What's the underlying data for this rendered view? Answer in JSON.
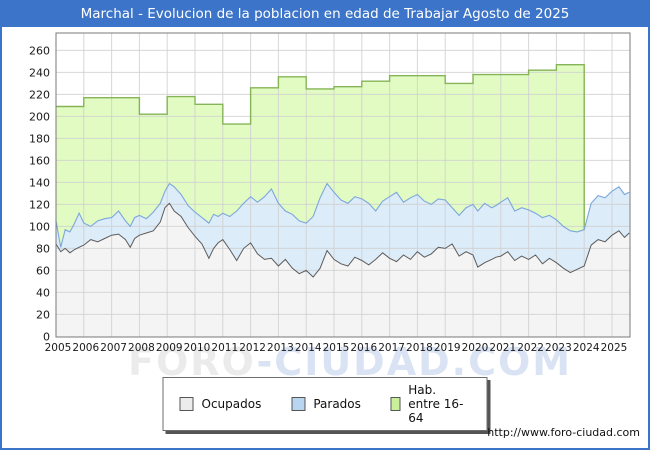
{
  "window": {
    "title": "Marchal - Evolucion de la poblacion en edad de Trabajar Agosto de 2025",
    "footer_url": "http://www.foro-ciudad.com",
    "watermark_part1": "FORO",
    "watermark_part2": "-CIUDAD.COM"
  },
  "colors": {
    "accent": "#3b74c8",
    "plot_border": "#7a7a7a",
    "grid": "#d0d0d0",
    "ocupados_line": "#5c5c5c",
    "ocupados_fill": "#f4f4f4",
    "parados_line": "#7ba7db",
    "parados_fill": "#dcecf9",
    "hab_line": "#85b457",
    "hab_fill": "#e2fbc3",
    "tick_text": "#1a1a1a"
  },
  "legend": {
    "items": [
      {
        "label": "Ocupados",
        "swatch_color": "#ececec"
      },
      {
        "label": "Parados",
        "swatch_color": "#b9d5ef"
      },
      {
        "label": "Hab. entre 16-64",
        "swatch_color": "#c9ef9a"
      }
    ]
  },
  "chart_data": {
    "type": "area",
    "title": "Marchal - Evolucion de la poblacion en edad de Trabajar Agosto de 2025",
    "xlabel": "",
    "ylabel": "",
    "xlim": [
      2005,
      2025.67
    ],
    "ylim": [
      0,
      276
    ],
    "y_ticks": [
      0,
      20,
      40,
      60,
      80,
      100,
      120,
      140,
      160,
      180,
      200,
      220,
      240,
      260
    ],
    "x_ticks": [
      2005,
      2006,
      2007,
      2008,
      2009,
      2010,
      2011,
      2012,
      2013,
      2014,
      2015,
      2016,
      2017,
      2018,
      2019,
      2020,
      2021,
      2022,
      2023,
      2024,
      2025
    ],
    "grid": true,
    "legend_position": "bottom",
    "series": [
      {
        "name": "Ocupados",
        "note": "monthly line, values estimated quarterly",
        "points": [
          [
            2005.0,
            84
          ],
          [
            2005.17,
            77
          ],
          [
            2005.33,
            80
          ],
          [
            2005.5,
            76
          ],
          [
            2005.67,
            79
          ],
          [
            2005.83,
            81
          ],
          [
            2006.0,
            83
          ],
          [
            2006.25,
            88
          ],
          [
            2006.5,
            86
          ],
          [
            2006.75,
            89
          ],
          [
            2007.0,
            92
          ],
          [
            2007.25,
            93
          ],
          [
            2007.5,
            88
          ],
          [
            2007.67,
            81
          ],
          [
            2007.83,
            89
          ],
          [
            2008.0,
            92
          ],
          [
            2008.25,
            94
          ],
          [
            2008.5,
            96
          ],
          [
            2008.75,
            104
          ],
          [
            2008.92,
            117
          ],
          [
            2009.08,
            121
          ],
          [
            2009.25,
            114
          ],
          [
            2009.5,
            109
          ],
          [
            2009.75,
            99
          ],
          [
            2010.0,
            91
          ],
          [
            2010.25,
            84
          ],
          [
            2010.5,
            71
          ],
          [
            2010.67,
            80
          ],
          [
            2010.83,
            85
          ],
          [
            2011.0,
            88
          ],
          [
            2011.25,
            79
          ],
          [
            2011.5,
            69
          ],
          [
            2011.75,
            80
          ],
          [
            2012.0,
            85
          ],
          [
            2012.25,
            75
          ],
          [
            2012.5,
            70
          ],
          [
            2012.75,
            71
          ],
          [
            2013.0,
            64
          ],
          [
            2013.25,
            70
          ],
          [
            2013.5,
            62
          ],
          [
            2013.75,
            57
          ],
          [
            2014.0,
            60
          ],
          [
            2014.25,
            54
          ],
          [
            2014.5,
            62
          ],
          [
            2014.75,
            78
          ],
          [
            2015.0,
            70
          ],
          [
            2015.25,
            66
          ],
          [
            2015.5,
            64
          ],
          [
            2015.75,
            72
          ],
          [
            2016.0,
            69
          ],
          [
            2016.25,
            65
          ],
          [
            2016.5,
            70
          ],
          [
            2016.75,
            76
          ],
          [
            2017.0,
            71
          ],
          [
            2017.25,
            68
          ],
          [
            2017.5,
            74
          ],
          [
            2017.75,
            70
          ],
          [
            2018.0,
            77
          ],
          [
            2018.25,
            72
          ],
          [
            2018.5,
            75
          ],
          [
            2018.75,
            81
          ],
          [
            2019.0,
            80
          ],
          [
            2019.25,
            84
          ],
          [
            2019.5,
            73
          ],
          [
            2019.75,
            77
          ],
          [
            2020.0,
            74
          ],
          [
            2020.17,
            63
          ],
          [
            2020.42,
            67
          ],
          [
            2020.67,
            70
          ],
          [
            2020.83,
            72
          ],
          [
            2021.0,
            73
          ],
          [
            2021.25,
            77
          ],
          [
            2021.5,
            69
          ],
          [
            2021.75,
            73
          ],
          [
            2022.0,
            70
          ],
          [
            2022.25,
            74
          ],
          [
            2022.5,
            66
          ],
          [
            2022.75,
            71
          ],
          [
            2023.0,
            67
          ],
          [
            2023.25,
            62
          ],
          [
            2023.5,
            58
          ],
          [
            2023.75,
            61
          ],
          [
            2024.0,
            64
          ],
          [
            2024.25,
            83
          ],
          [
            2024.5,
            88
          ],
          [
            2024.75,
            86
          ],
          [
            2025.0,
            92
          ],
          [
            2025.25,
            96
          ],
          [
            2025.45,
            90
          ],
          [
            2025.62,
            94
          ]
        ]
      },
      {
        "name": "Parados",
        "note": "plotted stacked on Ocupados; points are the drawn top line (Ocupados+Parados)",
        "points": [
          [
            2005.0,
            105
          ],
          [
            2005.17,
            81
          ],
          [
            2005.33,
            97
          ],
          [
            2005.5,
            95
          ],
          [
            2005.67,
            103
          ],
          [
            2005.83,
            112
          ],
          [
            2006.0,
            103
          ],
          [
            2006.25,
            100
          ],
          [
            2006.5,
            105
          ],
          [
            2006.75,
            107
          ],
          [
            2007.0,
            108
          ],
          [
            2007.25,
            114
          ],
          [
            2007.5,
            105
          ],
          [
            2007.67,
            100
          ],
          [
            2007.83,
            108
          ],
          [
            2008.0,
            110
          ],
          [
            2008.25,
            107
          ],
          [
            2008.5,
            113
          ],
          [
            2008.75,
            121
          ],
          [
            2008.92,
            132
          ],
          [
            2009.08,
            139
          ],
          [
            2009.25,
            136
          ],
          [
            2009.5,
            129
          ],
          [
            2009.75,
            119
          ],
          [
            2010.0,
            113
          ],
          [
            2010.25,
            108
          ],
          [
            2010.5,
            103
          ],
          [
            2010.67,
            111
          ],
          [
            2010.83,
            109
          ],
          [
            2011.0,
            112
          ],
          [
            2011.25,
            109
          ],
          [
            2011.5,
            114
          ],
          [
            2011.75,
            121
          ],
          [
            2012.0,
            127
          ],
          [
            2012.25,
            122
          ],
          [
            2012.5,
            127
          ],
          [
            2012.75,
            134
          ],
          [
            2013.0,
            121
          ],
          [
            2013.25,
            114
          ],
          [
            2013.5,
            111
          ],
          [
            2013.75,
            105
          ],
          [
            2014.0,
            103
          ],
          [
            2014.25,
            109
          ],
          [
            2014.5,
            126
          ],
          [
            2014.75,
            139
          ],
          [
            2015.0,
            131
          ],
          [
            2015.25,
            124
          ],
          [
            2015.5,
            121
          ],
          [
            2015.75,
            127
          ],
          [
            2016.0,
            125
          ],
          [
            2016.25,
            121
          ],
          [
            2016.5,
            114
          ],
          [
            2016.75,
            123
          ],
          [
            2017.0,
            127
          ],
          [
            2017.25,
            131
          ],
          [
            2017.5,
            122
          ],
          [
            2017.75,
            126
          ],
          [
            2018.0,
            129
          ],
          [
            2018.25,
            123
          ],
          [
            2018.5,
            120
          ],
          [
            2018.75,
            125
          ],
          [
            2019.0,
            124
          ],
          [
            2019.25,
            117
          ],
          [
            2019.5,
            110
          ],
          [
            2019.75,
            117
          ],
          [
            2020.0,
            120
          ],
          [
            2020.17,
            114
          ],
          [
            2020.42,
            121
          ],
          [
            2020.67,
            117
          ],
          [
            2020.83,
            119
          ],
          [
            2021.0,
            122
          ],
          [
            2021.25,
            126
          ],
          [
            2021.5,
            114
          ],
          [
            2021.75,
            117
          ],
          [
            2022.0,
            115
          ],
          [
            2022.25,
            112
          ],
          [
            2022.5,
            108
          ],
          [
            2022.75,
            110
          ],
          [
            2023.0,
            106
          ],
          [
            2023.25,
            100
          ],
          [
            2023.5,
            96
          ],
          [
            2023.75,
            95
          ],
          [
            2024.0,
            97
          ],
          [
            2024.25,
            121
          ],
          [
            2024.5,
            128
          ],
          [
            2024.75,
            126
          ],
          [
            2025.0,
            132
          ],
          [
            2025.25,
            136
          ],
          [
            2025.45,
            129
          ],
          [
            2025.62,
            131
          ]
        ]
      },
      {
        "name": "Hab. entre 16-64",
        "note": "annual padron step values; series ends at start of 2024",
        "step_years": [
          2005,
          2006,
          2007,
          2008,
          2009,
          2010,
          2011,
          2012,
          2013,
          2014,
          2015,
          2016,
          2017,
          2018,
          2019,
          2020,
          2021,
          2022,
          2023
        ],
        "step_values": [
          209,
          217,
          217,
          202,
          218,
          211,
          193,
          226,
          236,
          225,
          227,
          232,
          237,
          237,
          230,
          238,
          238,
          242,
          247
        ],
        "step_end_x": 2024
      }
    ]
  }
}
